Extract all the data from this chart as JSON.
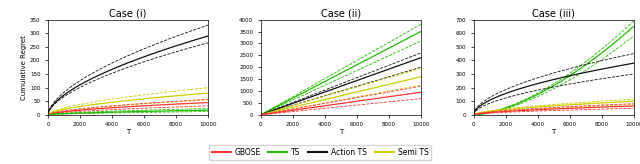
{
  "cases": [
    "Case (i)",
    "Case (ii)",
    "Case (iii)"
  ],
  "T": 10000,
  "colors": {
    "GBOSE": "#FF3333",
    "TS": "#22BB00",
    "Action TS": "#111111",
    "Semi TS": "#CCCC00"
  },
  "case_i": {
    "ylim": [
      0,
      350
    ],
    "yticks": [
      0,
      50,
      100,
      150,
      200,
      250,
      300,
      350
    ],
    "ylabel": "Cumulative Regret",
    "methods": {
      "Action TS": {
        "mean": 290,
        "lo": 265,
        "hi": 330,
        "power": 0.6
      },
      "Semi TS": {
        "mean": 80,
        "lo": 55,
        "hi": 100,
        "power": 0.6
      },
      "GBOSE": {
        "mean": 45,
        "lo": 33,
        "hi": 57,
        "power": 0.6
      },
      "TS": {
        "mean": 17,
        "lo": 12,
        "hi": 23,
        "power": 0.6
      }
    }
  },
  "case_ii": {
    "ylim": [
      0,
      4000
    ],
    "yticks": [
      0,
      500,
      1000,
      1500,
      2000,
      2500,
      3000,
      3500,
      4000
    ],
    "ylabel": "",
    "methods": {
      "TS": {
        "mean": 3500,
        "lo": 3100,
        "hi": 3800,
        "power": 1.0
      },
      "Action TS": {
        "mean": 2400,
        "lo": 2000,
        "hi": 2600,
        "power": 1.0
      },
      "Semi TS": {
        "mean": 1600,
        "lo": 1250,
        "hi": 1950,
        "power": 1.0
      },
      "GBOSE": {
        "mean": 950,
        "lo": 680,
        "hi": 1200,
        "power": 1.0
      }
    }
  },
  "case_iii": {
    "ylim": [
      0,
      700
    ],
    "yticks": [
      0,
      100,
      200,
      300,
      400,
      500,
      600,
      700
    ],
    "ylabel": "",
    "methods": {
      "TS": {
        "mean": 650,
        "lo": 580,
        "hi": 690,
        "power": 1.6
      },
      "Action TS": {
        "mean": 380,
        "lo": 300,
        "hi": 450,
        "power": 0.55
      },
      "Semi TS": {
        "mean": 100,
        "lo": 75,
        "hi": 115,
        "power": 0.6
      },
      "GBOSE": {
        "mean": 65,
        "lo": 48,
        "hi": 82,
        "power": 0.6
      }
    }
  }
}
